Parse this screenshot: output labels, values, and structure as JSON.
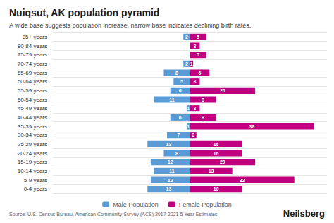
{
  "chart_data": {
    "type": "bar",
    "orientation": "horizontal",
    "title": "Nuiqsut, AK population pyramid",
    "subtitle": "A wide base suggests population increase, narrow base indicates declining birth rates.",
    "annotations": [
      "Source: U.S. Census Bureau, American Community Survey (ACS) 2017-2021 5-Year Estimates",
      "Neilsberg"
    ],
    "categories": [
      "0-4 years",
      "5-9 years",
      "10-14 years",
      "15-19 years",
      "20-24 years",
      "25-29 years",
      "30-34 years",
      "35-39 years",
      "40-44 years",
      "45-49 years",
      "50-54 years",
      "55-59 years",
      "60-64 years",
      "65-69 years",
      "70-74 years",
      "75-79 years",
      "80-84 years",
      "85+ years"
    ],
    "series": [
      {
        "name": "Male Population",
        "color": "#5b9bd5",
        "values": [
          13,
          12,
          11,
          12,
          8,
          13,
          7,
          1,
          6,
          1,
          11,
          6,
          5,
          8,
          2,
          0,
          0,
          2
        ]
      },
      {
        "name": "Female Population",
        "color": "#c00080",
        "values": [
          16,
          32,
          13,
          20,
          16,
          16,
          2,
          38,
          8,
          3,
          8,
          20,
          3,
          6,
          1,
          5,
          3,
          5
        ]
      }
    ],
    "xlim": [
      -42,
      42
    ],
    "tick_labels": "y",
    "grid": true,
    "legend": "bottom",
    "data_labels": true
  }
}
